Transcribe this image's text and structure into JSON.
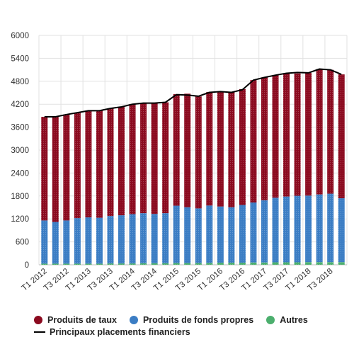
{
  "chart_data": {
    "type": "bar",
    "stacked": true,
    "categories": [
      "T1 2012",
      "T2 2012",
      "T3 2012",
      "T4 2012",
      "T1 2013",
      "T2 2013",
      "T3 2013",
      "T4 2013",
      "T1 2014",
      "T2 2014",
      "T3 2014",
      "T4 2014",
      "T1 2015",
      "T2 2015",
      "T3 2015",
      "T4 2015",
      "T1 2016",
      "T2 2016",
      "T3 2016",
      "T4 2016",
      "T1 2017",
      "T2 2017",
      "T3 2017",
      "T4 2017",
      "T1 2018",
      "T2 2018",
      "T3 2018",
      "T4 2018"
    ],
    "tick_labels": [
      "T1 2012",
      "T3 2012",
      "T1 2013",
      "T3 2013",
      "T1 2014",
      "T3 2014",
      "T1 2015",
      "T3 2015",
      "T1 2016",
      "T3 2016",
      "T1 2017",
      "T3 2017",
      "T1 2018",
      "T3 2018"
    ],
    "series": [
      {
        "name": "Autres",
        "color": "#4caf6e",
        "values": [
          30,
          30,
          30,
          30,
          30,
          30,
          35,
          35,
          35,
          40,
          40,
          40,
          45,
          45,
          45,
          50,
          55,
          55,
          55,
          60,
          60,
          65,
          65,
          65,
          70,
          70,
          70,
          70
        ]
      },
      {
        "name": "Produits de fonds propres",
        "color": "#3b7dc4",
        "values": [
          1130,
          1090,
          1130,
          1190,
          1210,
          1200,
          1240,
          1260,
          1290,
          1310,
          1290,
          1310,
          1500,
          1460,
          1430,
          1500,
          1470,
          1450,
          1510,
          1570,
          1630,
          1690,
          1720,
          1740,
          1740,
          1770,
          1790,
          1670
        ]
      },
      {
        "name": "Produits de taux",
        "color": "#8b0a1f",
        "values": [
          2710,
          2750,
          2770,
          2760,
          2790,
          2800,
          2810,
          2840,
          2880,
          2880,
          2900,
          2900,
          2920,
          2970,
          2930,
          2970,
          3000,
          3010,
          3030,
          3200,
          3210,
          3200,
          3220,
          3200,
          3210,
          3280,
          3240,
          3240
        ]
      }
    ],
    "line": {
      "name": "Principaux placements financiers",
      "color": "#000000",
      "values": [
        3870,
        3870,
        3930,
        3980,
        4030,
        4030,
        4090,
        4130,
        4200,
        4230,
        4230,
        4250,
        4450,
        4440,
        4410,
        4510,
        4530,
        4510,
        4580,
        4830,
        4900,
        4960,
        5010,
        5030,
        5020,
        5120,
        5100,
        4980
      ]
    },
    "ylim": [
      0,
      6000
    ],
    "yticks": [
      0,
      600,
      1200,
      1800,
      2400,
      3000,
      3600,
      4200,
      4800,
      5400,
      6000
    ],
    "grid": true,
    "legend_position": "bottom"
  }
}
